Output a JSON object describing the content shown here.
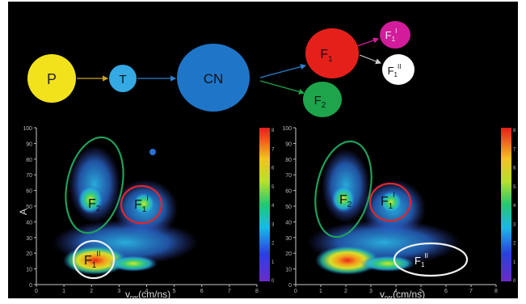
{
  "diagram": {
    "nodes": [
      {
        "id": "P",
        "label": "P",
        "color": "#f2e21c"
      },
      {
        "id": "T",
        "label": "T",
        "color": "#34a9e4"
      },
      {
        "id": "CN",
        "label": "CN",
        "color": "#1f76c9"
      },
      {
        "id": "F1",
        "label": "F",
        "sub": "1",
        "color": "#e5201b"
      },
      {
        "id": "F2",
        "label": "F",
        "sub": "2",
        "color": "#1ea54b"
      },
      {
        "id": "F1I",
        "label": "F",
        "sub": "1",
        "sup": "I",
        "color": "#d21c9b"
      },
      {
        "id": "F1II",
        "label": "F",
        "sub": "1",
        "sup": "II",
        "color": "#ffffff"
      }
    ],
    "edges": [
      {
        "from": "P",
        "to": "T",
        "color": "#c9a21f"
      },
      {
        "from": "T",
        "to": "CN",
        "color": "#2b7fd0"
      },
      {
        "from": "CN",
        "to": "F1",
        "color": "#2b7fd0"
      },
      {
        "from": "CN",
        "to": "F2",
        "color": "#1ea54b"
      },
      {
        "from": "F1",
        "to": "F1I",
        "color": "#d21c9b"
      },
      {
        "from": "F1",
        "to": "F1II",
        "color": "#cccccc"
      }
    ]
  },
  "plots": {
    "y_axis_label": "A",
    "x_axis_label": "v",
    "x_axis_sub": "par",
    "x_axis_unit": "(cm/ns)",
    "y_ticks": [
      "100",
      "90",
      "80",
      "70",
      "60",
      "50",
      "40",
      "30",
      "20",
      "10",
      "0"
    ],
    "x_ticks": [
      "0",
      "1",
      "2",
      "3",
      "4",
      "5",
      "6",
      "7",
      "8"
    ],
    "colorbar_ticks": [
      "8",
      "7",
      "6",
      "5",
      "4",
      "3",
      "2",
      "1",
      "0"
    ],
    "left": {
      "labels": [
        {
          "id": "F2",
          "text": "F",
          "sub": "2",
          "sup": ""
        },
        {
          "id": "F1I",
          "text": "F",
          "sub": "1",
          "sup": "I"
        },
        {
          "id": "F1II",
          "text": "F",
          "sub": "1",
          "sup": "II"
        }
      ]
    },
    "right": {
      "labels": [
        {
          "id": "F2",
          "text": "F",
          "sub": "2",
          "sup": ""
        },
        {
          "id": "F1I",
          "text": "F",
          "sub": "1",
          "sup": "I"
        },
        {
          "id": "F1II",
          "text": "F",
          "sub": "1",
          "sup": "II"
        }
      ]
    }
  },
  "colors": {
    "background": "#000000",
    "ellipse_green": "#1fa05a",
    "ellipse_red": "#e2262a",
    "ellipse_white": "#f0f0f0"
  }
}
